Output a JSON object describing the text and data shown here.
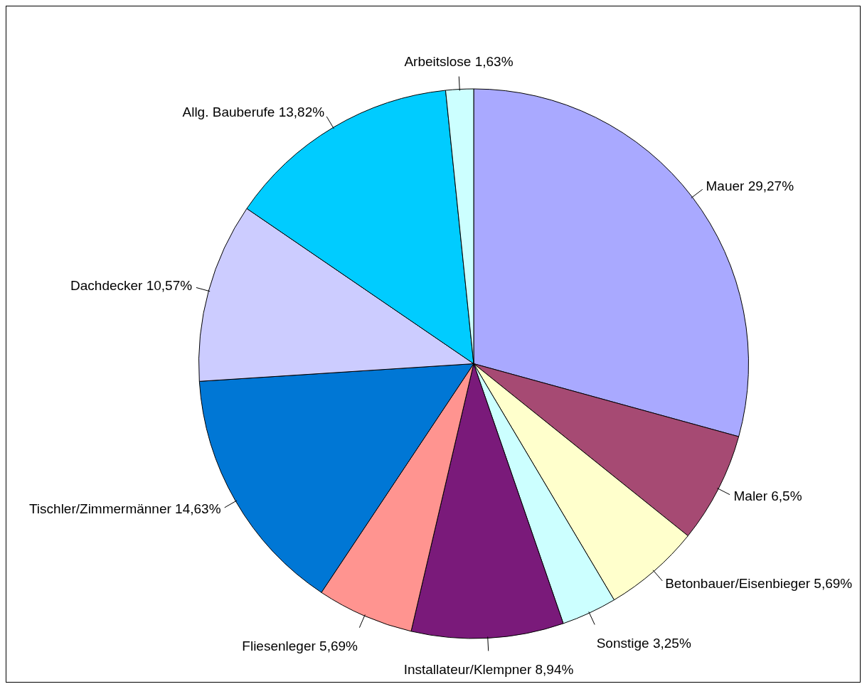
{
  "chart_data": {
    "type": "pie",
    "categories": [
      "Mauer",
      "Maler",
      "Betonbauer/Eisenbieger",
      "Sonstige",
      "Installateur/Klempner",
      "Fliesenleger",
      "Tischler/Zimmermänner",
      "Dachdecker",
      "Allg. Bauberufe",
      "Arbeitslose"
    ],
    "values": [
      29.27,
      6.5,
      5.69,
      3.25,
      8.94,
      5.69,
      14.63,
      10.57,
      13.82,
      1.63
    ],
    "value_labels": [
      "29,27%",
      "6,5%",
      "5,69%",
      "3,25%",
      "8,94%",
      "5,69%",
      "14,63%",
      "10,57%",
      "13,82%",
      "1,63%"
    ],
    "colors": [
      "#a9a9ff",
      "#a64a73",
      "#ffffcc",
      "#ccffff",
      "#7a1a7a",
      "#ff9490",
      "#0077d5",
      "#ccccff",
      "#00ccff",
      "#ccffff"
    ],
    "legend": false
  }
}
